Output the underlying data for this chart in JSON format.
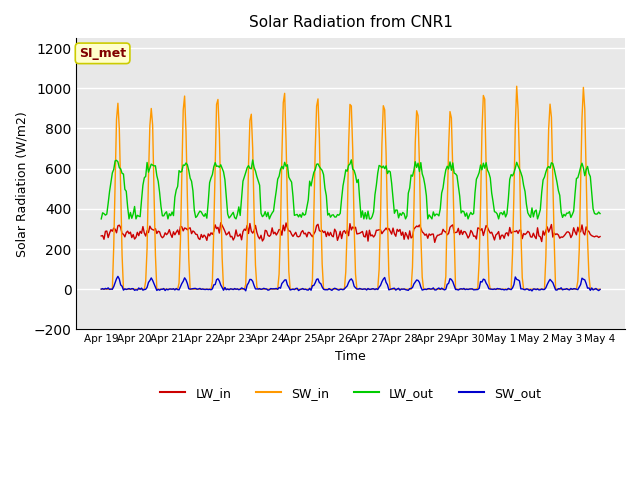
{
  "title": "Solar Radiation from CNR1",
  "xlabel": "Time",
  "ylabel": "Solar Radiation (W/m2)",
  "ylim": [
    -200,
    1250
  ],
  "yticks": [
    -200,
    0,
    200,
    400,
    600,
    800,
    1000,
    1200
  ],
  "background_color": "#ffffff",
  "plot_bg_color": "#e8e8e8",
  "grid_color": "#ffffff",
  "annotation_text": "SI_met",
  "annotation_bg": "#ffffcc",
  "annotation_border": "#cccc00",
  "annotation_text_color": "#800000",
  "colors": {
    "LW_in": "#cc0000",
    "SW_in": "#ff9900",
    "LW_out": "#00cc00",
    "SW_out": "#0000cc"
  },
  "legend_labels": [
    "LW_in",
    "SW_in",
    "LW_out",
    "SW_out"
  ],
  "num_days": 15,
  "x_tick_labels": [
    "Apr 19",
    "Apr 20",
    "Apr 21",
    "Apr 22",
    "Apr 23",
    "Apr 24",
    "Apr 25",
    "Apr 26",
    "Apr 27",
    "Apr 28",
    "Apr 29",
    "Apr 30",
    "May 1",
    "May 2",
    "May 3",
    "May 4"
  ]
}
